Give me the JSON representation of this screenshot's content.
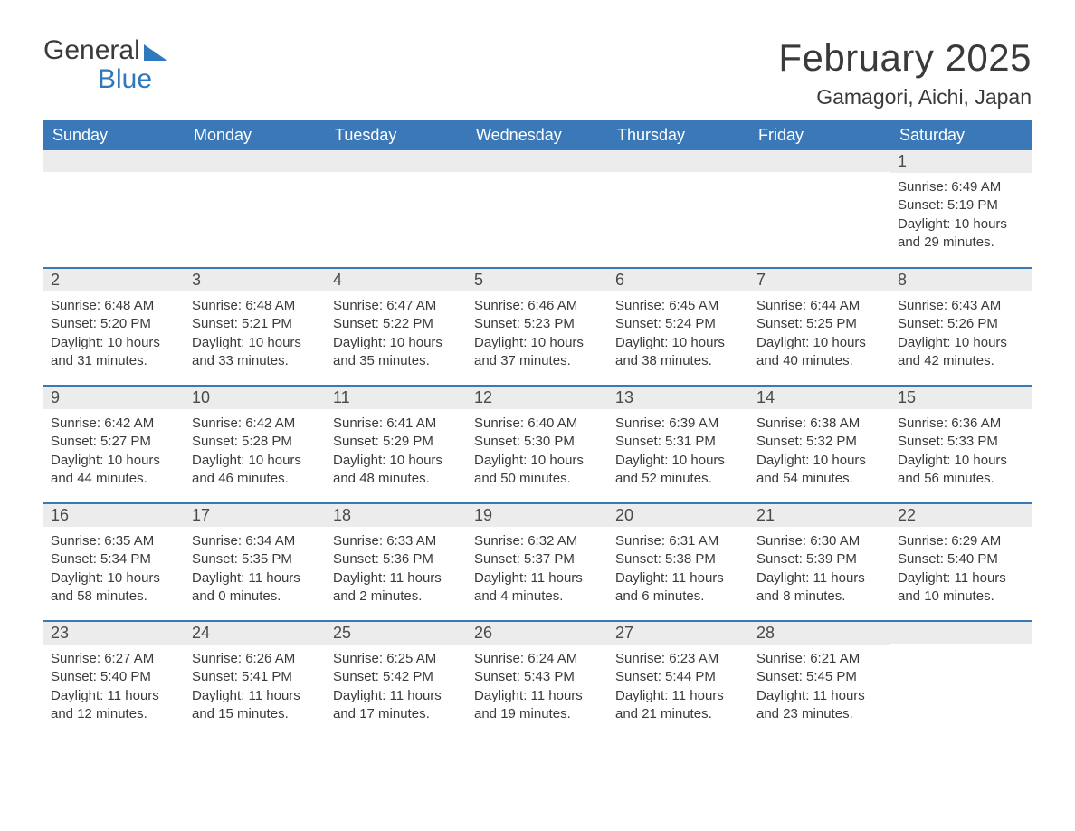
{
  "logo": {
    "word1": "General",
    "word2": "Blue"
  },
  "title": "February 2025",
  "location": "Gamagori, Aichi, Japan",
  "colors": {
    "header_bg": "#3b78b8",
    "header_text": "#ffffff",
    "daynum_bg": "#ececec",
    "row_divider": "#3b78b8",
    "text": "#3a3a3a",
    "logo_blue": "#2f78bd",
    "page_bg": "#ffffff"
  },
  "typography": {
    "title_fontsize": 42,
    "location_fontsize": 23,
    "dayheader_fontsize": 18,
    "daynum_fontsize": 18,
    "detail_fontsize": 15,
    "font_family": "Arial"
  },
  "day_headers": [
    "Sunday",
    "Monday",
    "Tuesday",
    "Wednesday",
    "Thursday",
    "Friday",
    "Saturday"
  ],
  "labels": {
    "sunrise": "Sunrise",
    "sunset": "Sunset",
    "daylight": "Daylight"
  },
  "weeks": [
    [
      null,
      null,
      null,
      null,
      null,
      null,
      {
        "n": "1",
        "sunrise": "6:49 AM",
        "sunset": "5:19 PM",
        "daylight": "10 hours and 29 minutes."
      }
    ],
    [
      {
        "n": "2",
        "sunrise": "6:48 AM",
        "sunset": "5:20 PM",
        "daylight": "10 hours and 31 minutes."
      },
      {
        "n": "3",
        "sunrise": "6:48 AM",
        "sunset": "5:21 PM",
        "daylight": "10 hours and 33 minutes."
      },
      {
        "n": "4",
        "sunrise": "6:47 AM",
        "sunset": "5:22 PM",
        "daylight": "10 hours and 35 minutes."
      },
      {
        "n": "5",
        "sunrise": "6:46 AM",
        "sunset": "5:23 PM",
        "daylight": "10 hours and 37 minutes."
      },
      {
        "n": "6",
        "sunrise": "6:45 AM",
        "sunset": "5:24 PM",
        "daylight": "10 hours and 38 minutes."
      },
      {
        "n": "7",
        "sunrise": "6:44 AM",
        "sunset": "5:25 PM",
        "daylight": "10 hours and 40 minutes."
      },
      {
        "n": "8",
        "sunrise": "6:43 AM",
        "sunset": "5:26 PM",
        "daylight": "10 hours and 42 minutes."
      }
    ],
    [
      {
        "n": "9",
        "sunrise": "6:42 AM",
        "sunset": "5:27 PM",
        "daylight": "10 hours and 44 minutes."
      },
      {
        "n": "10",
        "sunrise": "6:42 AM",
        "sunset": "5:28 PM",
        "daylight": "10 hours and 46 minutes."
      },
      {
        "n": "11",
        "sunrise": "6:41 AM",
        "sunset": "5:29 PM",
        "daylight": "10 hours and 48 minutes."
      },
      {
        "n": "12",
        "sunrise": "6:40 AM",
        "sunset": "5:30 PM",
        "daylight": "10 hours and 50 minutes."
      },
      {
        "n": "13",
        "sunrise": "6:39 AM",
        "sunset": "5:31 PM",
        "daylight": "10 hours and 52 minutes."
      },
      {
        "n": "14",
        "sunrise": "6:38 AM",
        "sunset": "5:32 PM",
        "daylight": "10 hours and 54 minutes."
      },
      {
        "n": "15",
        "sunrise": "6:36 AM",
        "sunset": "5:33 PM",
        "daylight": "10 hours and 56 minutes."
      }
    ],
    [
      {
        "n": "16",
        "sunrise": "6:35 AM",
        "sunset": "5:34 PM",
        "daylight": "10 hours and 58 minutes."
      },
      {
        "n": "17",
        "sunrise": "6:34 AM",
        "sunset": "5:35 PM",
        "daylight": "11 hours and 0 minutes."
      },
      {
        "n": "18",
        "sunrise": "6:33 AM",
        "sunset": "5:36 PM",
        "daylight": "11 hours and 2 minutes."
      },
      {
        "n": "19",
        "sunrise": "6:32 AM",
        "sunset": "5:37 PM",
        "daylight": "11 hours and 4 minutes."
      },
      {
        "n": "20",
        "sunrise": "6:31 AM",
        "sunset": "5:38 PM",
        "daylight": "11 hours and 6 minutes."
      },
      {
        "n": "21",
        "sunrise": "6:30 AM",
        "sunset": "5:39 PM",
        "daylight": "11 hours and 8 minutes."
      },
      {
        "n": "22",
        "sunrise": "6:29 AM",
        "sunset": "5:40 PM",
        "daylight": "11 hours and 10 minutes."
      }
    ],
    [
      {
        "n": "23",
        "sunrise": "6:27 AM",
        "sunset": "5:40 PM",
        "daylight": "11 hours and 12 minutes."
      },
      {
        "n": "24",
        "sunrise": "6:26 AM",
        "sunset": "5:41 PM",
        "daylight": "11 hours and 15 minutes."
      },
      {
        "n": "25",
        "sunrise": "6:25 AM",
        "sunset": "5:42 PM",
        "daylight": "11 hours and 17 minutes."
      },
      {
        "n": "26",
        "sunrise": "6:24 AM",
        "sunset": "5:43 PM",
        "daylight": "11 hours and 19 minutes."
      },
      {
        "n": "27",
        "sunrise": "6:23 AM",
        "sunset": "5:44 PM",
        "daylight": "11 hours and 21 minutes."
      },
      {
        "n": "28",
        "sunrise": "6:21 AM",
        "sunset": "5:45 PM",
        "daylight": "11 hours and 23 minutes."
      },
      null
    ]
  ]
}
